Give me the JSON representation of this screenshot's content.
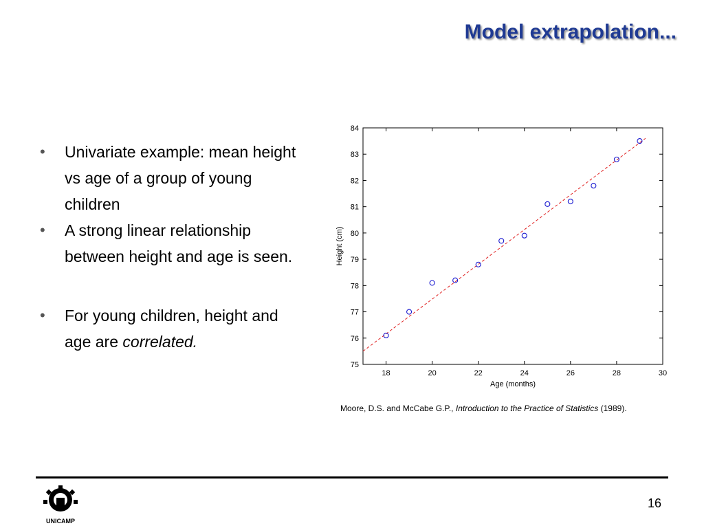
{
  "slide": {
    "title": "Model extrapolation...",
    "bullets": [
      {
        "text": "Univariate example: mean height vs age of a group of young children"
      },
      {
        "text": "A strong linear relationship between height and age is seen."
      },
      {
        "text_before": "For young children, height and age are ",
        "text_em": "correlated."
      }
    ],
    "bullet_glyph": "•",
    "citation": {
      "authors": "Moore, D.S. and McCabe G.P., ",
      "book": "Introduction to the Practice of Statistics",
      "year": " (1989)."
    },
    "page_number": "16",
    "logo_text": "UNICAMP"
  },
  "colors": {
    "title": "#1f3a93",
    "points": "#1a1ad0",
    "fit_line": "#e02020"
  },
  "chart_data": {
    "type": "scatter",
    "title": "",
    "xlabel": "Age (months)",
    "ylabel": "Height (cm)",
    "xlim": [
      17,
      30
    ],
    "ylim": [
      75,
      84
    ],
    "xticks": [
      18,
      20,
      22,
      24,
      26,
      28,
      30
    ],
    "yticks": [
      75,
      76,
      77,
      78,
      79,
      80,
      81,
      82,
      83,
      84
    ],
    "grid": false,
    "points": [
      {
        "x": 18,
        "y": 76.1
      },
      {
        "x": 19,
        "y": 77.0
      },
      {
        "x": 20,
        "y": 78.1
      },
      {
        "x": 21,
        "y": 78.2
      },
      {
        "x": 22,
        "y": 78.8
      },
      {
        "x": 23,
        "y": 79.7
      },
      {
        "x": 24,
        "y": 79.9
      },
      {
        "x": 25,
        "y": 81.1
      },
      {
        "x": 26,
        "y": 81.2
      },
      {
        "x": 27,
        "y": 81.8
      },
      {
        "x": 28,
        "y": 82.8
      },
      {
        "x": 29,
        "y": 83.5
      }
    ],
    "fit_line": {
      "style": "dashed",
      "x": [
        17,
        29.25
      ],
      "y": [
        75.5,
        83.6
      ]
    }
  }
}
